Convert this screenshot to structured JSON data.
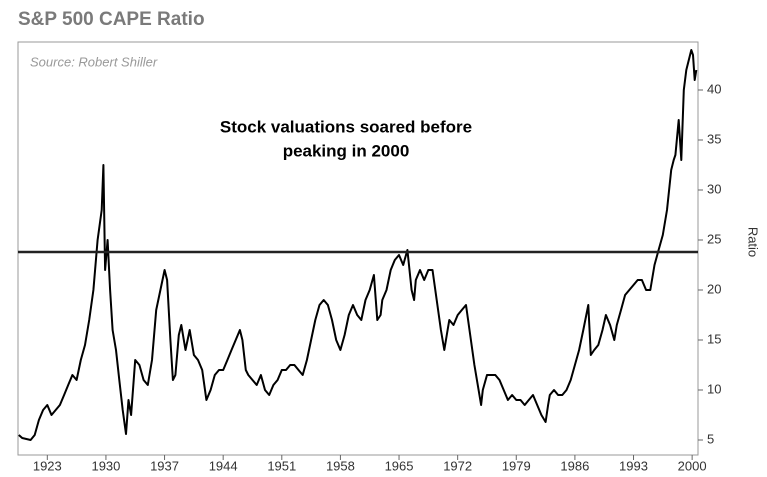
{
  "chart_data": {
    "type": "line",
    "title": "S&P 500 CAPE Ratio",
    "source": "Source: Robert Shiller",
    "annotation": [
      "Stock valuations soared before",
      "peaking in 2000"
    ],
    "ylabel": "Ratio",
    "color": "#000000",
    "reference_line": 23.8,
    "xlim": [
      1919.5,
      2000.7
    ],
    "ylim": [
      3.5,
      44.8
    ],
    "xticks": [
      1923,
      1930,
      1937,
      1944,
      1951,
      1958,
      1965,
      1972,
      1979,
      1986,
      1993,
      2000
    ],
    "yticks": [
      5,
      10,
      15,
      20,
      25,
      30,
      35,
      40
    ],
    "series": [
      {
        "name": "CAPE",
        "color": "#000000",
        "x": [
          1919.6,
          1920,
          1921,
          1921.5,
          1922,
          1922.5,
          1923,
          1923.5,
          1924,
          1924.5,
          1925,
          1925.5,
          1926,
          1926.5,
          1927,
          1927.5,
          1928,
          1928.5,
          1929,
          1929.5,
          1929.7,
          1929.9,
          1930.2,
          1930.5,
          1930.8,
          1931.2,
          1931.6,
          1932,
          1932.4,
          1932.7,
          1933,
          1933.5,
          1934,
          1934.5,
          1935,
          1935.5,
          1936,
          1936.5,
          1937,
          1937.3,
          1937.7,
          1938,
          1938.3,
          1938.7,
          1939,
          1939.5,
          1940,
          1940.5,
          1941,
          1941.5,
          1942,
          1942.5,
          1943,
          1943.5,
          1944,
          1944.5,
          1945,
          1945.5,
          1946,
          1946.3,
          1946.7,
          1947,
          1947.5,
          1948,
          1948.5,
          1949,
          1949.5,
          1950,
          1950.5,
          1951,
          1951.5,
          1952,
          1952.5,
          1953,
          1953.5,
          1954,
          1954.5,
          1955,
          1955.5,
          1956,
          1956.5,
          1957,
          1957.5,
          1958,
          1958.5,
          1959,
          1959.5,
          1960,
          1960.5,
          1961,
          1961.5,
          1962,
          1962.4,
          1962.8,
          1963,
          1963.5,
          1964,
          1964.5,
          1965,
          1965.5,
          1966,
          1966.5,
          1966.8,
          1967,
          1967.5,
          1968,
          1968.5,
          1969,
          1969.5,
          1970,
          1970.4,
          1970.8,
          1971,
          1971.5,
          1972,
          1972.5,
          1973,
          1973.5,
          1974,
          1974.5,
          1974.8,
          1975,
          1975.5,
          1976,
          1976.5,
          1977,
          1977.5,
          1978,
          1978.5,
          1979,
          1979.5,
          1980,
          1980.5,
          1981,
          1981.5,
          1982,
          1982.5,
          1982.8,
          1983,
          1983.5,
          1984,
          1984.5,
          1985,
          1985.5,
          1986,
          1986.5,
          1987,
          1987.6,
          1987.9,
          1988.3,
          1988.8,
          1989.3,
          1989.7,
          1990.2,
          1990.7,
          1991,
          1991.5,
          1992,
          1992.5,
          1993,
          1993.5,
          1994,
          1994.5,
          1995,
          1995.5,
          1996,
          1996.5,
          1997,
          1997.5,
          1997.8,
          1998,
          1998.4,
          1998.7,
          1999,
          1999.3,
          1999.6,
          1999.9,
          2000.1,
          2000.3,
          2000.5
        ],
        "values": [
          5.5,
          5.2,
          5.0,
          5.5,
          7.0,
          8.0,
          8.5,
          7.5,
          8.0,
          8.5,
          9.5,
          10.5,
          11.5,
          11.0,
          13,
          14.5,
          17,
          20,
          25,
          28,
          32.5,
          22,
          25,
          20,
          16,
          14,
          11,
          8,
          5.6,
          9,
          7.5,
          13,
          12.5,
          11,
          10.5,
          13,
          18,
          20,
          22,
          21,
          15,
          11,
          11.5,
          15.5,
          16.5,
          14,
          16,
          13.5,
          13,
          12,
          9,
          10,
          11.5,
          12,
          12,
          13,
          14,
          15,
          16,
          15,
          12,
          11.5,
          11,
          10.5,
          11.5,
          10,
          9.5,
          10.5,
          11,
          12,
          12,
          12.5,
          12.5,
          12,
          11.5,
          13,
          15,
          17,
          18.5,
          19,
          18.5,
          17,
          15,
          14,
          15.5,
          17.5,
          18.5,
          17.5,
          17,
          19,
          20,
          21.5,
          17,
          17.5,
          19,
          20,
          22,
          23,
          23.5,
          22.5,
          24,
          20,
          19,
          21,
          22,
          21,
          22,
          22,
          19,
          16,
          14,
          16,
          17,
          16.5,
          17.5,
          18,
          18.5,
          15.5,
          12.5,
          10,
          8.5,
          10,
          11.5,
          11.5,
          11.5,
          11,
          10,
          9,
          9.5,
          9,
          9,
          8.5,
          9,
          9.5,
          8.5,
          7.5,
          6.8,
          8.5,
          9.5,
          10,
          9.5,
          9.5,
          10,
          11,
          12.5,
          14,
          16,
          18.5,
          13.5,
          14,
          14.5,
          16,
          17.5,
          16.5,
          15,
          16.5,
          18,
          19.5,
          20,
          20.5,
          21,
          21,
          20,
          20,
          22.5,
          24,
          25.5,
          28,
          32,
          33,
          33.5,
          37,
          33,
          40,
          42,
          43,
          44,
          43.5,
          41,
          42
        ]
      }
    ]
  }
}
